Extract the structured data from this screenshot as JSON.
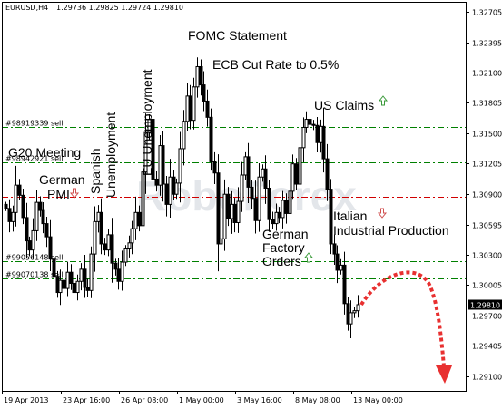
{
  "window": {
    "symbol": "EURUSD,H4",
    "ohlc": "1.29736 1.29825 1.29724 1.29810",
    "watermark": "RoboForex"
  },
  "colors": {
    "candle": "#000000",
    "green_line": "#008000",
    "red_line": "#d00000",
    "up_arrow": "#3a9a3a",
    "down_arrow": "#d05050",
    "forecast": "#e83030"
  },
  "chart_data": {
    "type": "candlestick",
    "title": "EURUSD,H4",
    "ylim": [
      1.2895,
      1.328
    ],
    "y_ticks": [
      "1.32705",
      "1.32395",
      "1.32100",
      "1.31805",
      "1.31500",
      "1.31205",
      "1.30900",
      "1.30595",
      "1.30300",
      "1.30005",
      "1.29700",
      "1.29405",
      "1.29100"
    ],
    "x_ticks": [
      "19 Apr 2013",
      "23 Apr 16:00",
      "26 Apr 08:00",
      "1 May 00:00",
      "3 May 16:00",
      "8 May 08:00",
      "13 May 00:00"
    ],
    "current_price": "1.29810",
    "closes": [
      1.3076,
      1.3063,
      1.3072,
      1.3099,
      1.3089,
      1.3067,
      1.3044,
      1.3035,
      1.3054,
      1.3082,
      1.3074,
      1.3061,
      1.3048,
      1.3026,
      1.3009,
      1.2993,
      1.3005,
      1.2997,
      1.3013,
      1.3002,
      1.2993,
      1.3004,
      1.3016,
      1.2998,
      1.2995,
      1.3031,
      1.3063,
      1.3072,
      1.3041,
      1.3035,
      1.305,
      1.3022,
      1.3016,
      1.3004,
      1.3023,
      1.3036,
      1.3042,
      1.3056,
      1.3072,
      1.3059,
      1.3112,
      1.3151,
      1.3164,
      1.3105,
      1.3099,
      1.3138,
      1.31,
      1.308,
      1.3107,
      1.309,
      1.3101,
      1.3135,
      1.3162,
      1.3187,
      1.3163,
      1.3196,
      1.3216,
      1.3198,
      1.3182,
      1.3166,
      1.3122,
      1.3111,
      1.3041,
      1.3046,
      1.309,
      1.3066,
      1.308,
      1.3062,
      1.3083,
      1.3109,
      1.3127,
      1.3097,
      1.3086,
      1.3064,
      1.3107,
      1.3115,
      1.3096,
      1.3065,
      1.3061,
      1.3072,
      1.3067,
      1.3084,
      1.3071,
      1.3093,
      1.312,
      1.31,
      1.3136,
      1.3156,
      1.3164,
      1.3159,
      1.3158,
      1.3141,
      1.3157,
      1.3125,
      1.3095,
      1.3041,
      1.3031,
      1.3015,
      1.302,
      1.2982,
      1.2962,
      1.2973,
      1.2975,
      1.2981
    ],
    "levels": [
      {
        "label": "#98919339 sell",
        "price": 1.31567,
        "color": "green"
      },
      {
        "label": "#98942921 sell",
        "price": 1.31211,
        "color": "green"
      },
      {
        "label": "",
        "price": 1.30877,
        "color": "red"
      },
      {
        "label": "#99056148 sell",
        "price": 1.30236,
        "color": "green"
      },
      {
        "label": "#99070138 sell",
        "price": 1.30068,
        "color": "green"
      }
    ],
    "annotations": [
      {
        "text": "FOMC Statement",
        "marker": "none"
      },
      {
        "text": "ECB Cut Rate to 0.5%",
        "marker": "none"
      },
      {
        "text": "US Claims",
        "marker": "up"
      },
      {
        "text": "EU Unemployment",
        "marker": "none"
      },
      {
        "text": "Spanish Unemployment",
        "marker": "none"
      },
      {
        "text": "G20 Meeting",
        "marker": "none"
      },
      {
        "text": "German PMI",
        "marker": "down"
      },
      {
        "text": "Italian Industrial Production",
        "marker": "down"
      },
      {
        "text": "German Factory Orders",
        "marker": "up"
      }
    ],
    "forecast": "curved dashed arrow up then down"
  }
}
